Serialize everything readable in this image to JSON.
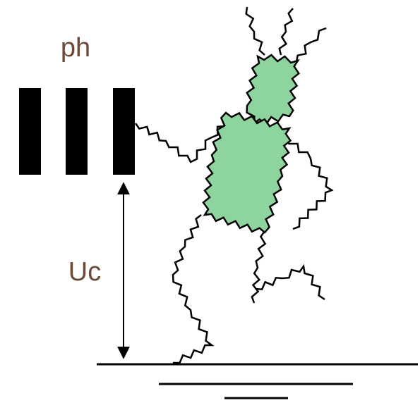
{
  "labels": {
    "ph": "ph",
    "uc": "Uc"
  }
}
